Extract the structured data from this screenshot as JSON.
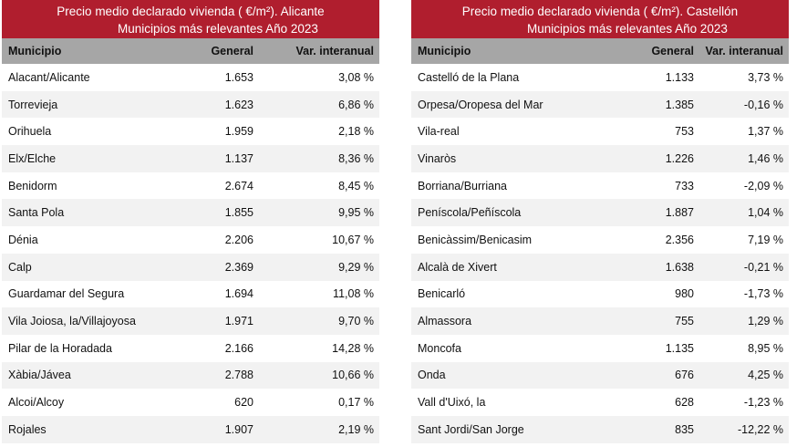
{
  "tables": [
    {
      "title1": "Precio medio declarado vivienda ( €/m²). Alicante",
      "title2": "Municipios más relevantes  Año 2023",
      "headers": [
        "Municipio",
        "General",
        "Var. interanual"
      ],
      "rows": [
        [
          "Alacant/Alicante",
          "1.653",
          "3,08 %"
        ],
        [
          "Torrevieja",
          "1.623",
          "6,86 %"
        ],
        [
          "Orihuela",
          "1.959",
          "2,18 %"
        ],
        [
          "Elx/Elche",
          "1.137",
          "8,36 %"
        ],
        [
          "Benidorm",
          "2.674",
          "8,45 %"
        ],
        [
          "Santa Pola",
          "1.855",
          "9,95 %"
        ],
        [
          "Dénia",
          "2.206",
          "10,67 %"
        ],
        [
          "Calp",
          "2.369",
          "9,29 %"
        ],
        [
          "Guardamar del Segura",
          "1.694",
          "11,08 %"
        ],
        [
          "Vila Joiosa, la/Villajoyosa",
          "1.971",
          "9,70 %"
        ],
        [
          "Pilar de la Horadada",
          "2.166",
          "14,28 %"
        ],
        [
          "Xàbia/Jávea",
          "2.788",
          "10,66 %"
        ],
        [
          "Alcoi/Alcoy",
          "620",
          "0,17 %"
        ],
        [
          "Rojales",
          "1.907",
          "2,19 %"
        ]
      ]
    },
    {
      "title1": "Precio medio declarado vivienda ( €/m²). Castellón",
      "title2": "Municipios más relevantes  Año 2023",
      "headers": [
        "Municipio",
        "General",
        "Var. interanual"
      ],
      "rows": [
        [
          "Castelló de la Plana",
          "1.133",
          "3,73 %"
        ],
        [
          "Orpesa/Oropesa del Mar",
          "1.385",
          "-0,16 %"
        ],
        [
          "Vila-real",
          "753",
          "1,37 %"
        ],
        [
          "Vinaròs",
          "1.226",
          "1,46 %"
        ],
        [
          "Borriana/Burriana",
          "733",
          "-2,09 %"
        ],
        [
          "Peníscola/Peñíscola",
          "1.887",
          "1,04 %"
        ],
        [
          "Benicàssim/Benicasim",
          "2.356",
          "7,19 %"
        ],
        [
          "Alcalà de Xivert",
          "1.638",
          "-0,21 %"
        ],
        [
          "Benicarló",
          "980",
          "-1,73 %"
        ],
        [
          "Almassora",
          "755",
          "1,29 %"
        ],
        [
          "Moncofa",
          "1.135",
          "8,95 %"
        ],
        [
          "Onda",
          "676",
          "4,25 %"
        ],
        [
          "Vall d'Uixó, la",
          "628",
          "-1,23 %"
        ],
        [
          "Sant Jordi/San Jorge",
          "835",
          "-12,22 %"
        ]
      ]
    }
  ]
}
